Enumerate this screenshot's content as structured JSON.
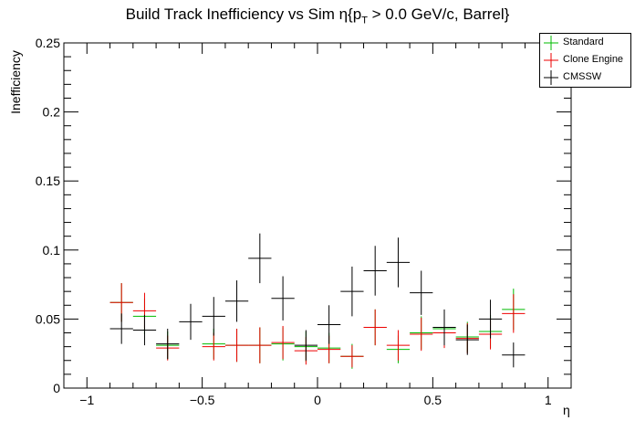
{
  "chart_data": {
    "type": "scatter",
    "title_prefix": "Build Track Inefficiency vs Sim η{p",
    "title_sub": "T",
    "title_suffix": " > 0.0 GeV/c, Barrel}",
    "xlabel": "η",
    "ylabel": "Inefficiency",
    "xlim": [
      -1.1,
      1.1
    ],
    "ylim": [
      0,
      0.25
    ],
    "x_ticks": [
      -1,
      -0.5,
      0,
      0.5,
      1
    ],
    "x_tick_labels": [
      "−1",
      "−0.5",
      "0",
      "0.5",
      "1"
    ],
    "y_ticks": [
      0,
      0.05,
      0.1,
      0.15,
      0.2,
      0.25
    ],
    "y_tick_labels": [
      "0",
      "0.05",
      "0.1",
      "0.15",
      "0.2",
      "0.25"
    ],
    "bin_half_width": 0.05,
    "legend_position": "top-right",
    "series": [
      {
        "name": "Standard",
        "color": "#00bb00",
        "x": [
          -0.85,
          -0.75,
          -0.65,
          -0.45,
          -0.35,
          -0.25,
          -0.15,
          -0.05,
          0.05,
          0.15,
          0.25,
          0.35,
          0.45,
          0.55,
          0.65,
          0.75,
          0.85
        ],
        "y": [
          0.062,
          0.052,
          0.031,
          0.032,
          0.031,
          0.031,
          0.032,
          0.03,
          0.029,
          0.023,
          0.044,
          0.028,
          0.04,
          0.043,
          0.037,
          0.041,
          0.057
        ],
        "err": [
          0.014,
          0.013,
          0.01,
          0.011,
          0.012,
          0.013,
          0.012,
          0.011,
          0.011,
          0.009,
          0.013,
          0.01,
          0.012,
          0.012,
          0.011,
          0.012,
          0.015
        ]
      },
      {
        "name": "Clone Engine",
        "color": "#ee0000",
        "x": [
          -0.85,
          -0.75,
          -0.65,
          -0.45,
          -0.35,
          -0.25,
          -0.15,
          -0.05,
          0.05,
          0.15,
          0.25,
          0.35,
          0.45,
          0.55,
          0.65,
          0.75,
          0.85
        ],
        "y": [
          0.062,
          0.056,
          0.029,
          0.03,
          0.031,
          0.031,
          0.033,
          0.027,
          0.028,
          0.023,
          0.044,
          0.031,
          0.039,
          0.04,
          0.036,
          0.039,
          0.054
        ],
        "err": [
          0.014,
          0.013,
          0.009,
          0.01,
          0.012,
          0.013,
          0.012,
          0.01,
          0.01,
          0.008,
          0.013,
          0.011,
          0.012,
          0.011,
          0.011,
          0.011,
          0.014
        ]
      },
      {
        "name": "CMSSW",
        "color": "#000000",
        "x": [
          -0.85,
          -0.75,
          -0.65,
          -0.55,
          -0.45,
          -0.35,
          -0.25,
          -0.15,
          -0.05,
          0.05,
          0.15,
          0.25,
          0.35,
          0.45,
          0.55,
          0.65,
          0.75,
          0.85
        ],
        "y": [
          0.043,
          0.042,
          0.032,
          0.048,
          0.052,
          0.063,
          0.094,
          0.065,
          0.031,
          0.046,
          0.07,
          0.085,
          0.091,
          0.069,
          0.044,
          0.035,
          0.05,
          0.024
        ],
        "err": [
          0.011,
          0.011,
          0.011,
          0.013,
          0.014,
          0.015,
          0.018,
          0.016,
          0.011,
          0.014,
          0.018,
          0.018,
          0.018,
          0.016,
          0.013,
          0.011,
          0.014,
          0.009
        ]
      }
    ]
  }
}
